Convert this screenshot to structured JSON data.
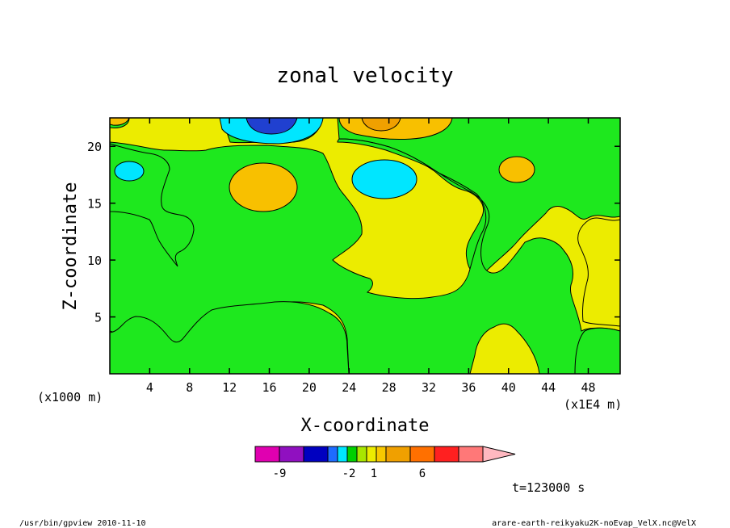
{
  "chart_data": {
    "type": "contour",
    "title": "zonal velocity",
    "xlabel": "X-coordinate",
    "ylabel": "Z-coordinate",
    "x_unit": "(x1000 m)",
    "x_scale_label": "(x1E4 m)",
    "xlim": [
      0,
      51.2
    ],
    "ylim": [
      0,
      22.5
    ],
    "x_ticks": [
      4,
      8,
      12,
      16,
      20,
      24,
      28,
      32,
      36,
      40,
      44,
      48
    ],
    "y_ticks": [
      5,
      10,
      15,
      20
    ],
    "time_label": "t=123000 s",
    "footer_left": "/usr/bin/gpview   2010-11-10",
    "footer_right": "arare-earth-reikyaku2K-noEvap_VelX.nc@VelX",
    "colorbar": {
      "tick_labels": [
        "-9",
        "-2",
        "1",
        "6"
      ],
      "colors": [
        "#e000b0",
        "#9010c0",
        "#0000c0",
        "#1e6cff",
        "#00e6ff",
        "#00d000",
        "#a8e600",
        "#ecec00",
        "#f8c800",
        "#f0a000",
        "#ff7000",
        "#ff2020",
        "#ff7878",
        "#ffb8c0"
      ]
    },
    "regions": [
      {
        "level": "0..1",
        "color": "#ecec00",
        "note": "background"
      },
      {
        "level": "-1..0",
        "color": "#1ee81e"
      },
      {
        "level": "1..2",
        "color": "#f8c000"
      },
      {
        "level": "2..3",
        "color": "#f0a000"
      },
      {
        "level": "-2..-1",
        "color": "#00e6ff"
      },
      {
        "level": "-3..-2",
        "color": "#2040d0"
      }
    ]
  },
  "colors": {
    "yellow": "#ecec00",
    "green": "#1ee81e",
    "orange": "#f8c000",
    "dark_orange": "#f0a000",
    "cyan": "#00e6ff",
    "blue": "#2040d0"
  }
}
